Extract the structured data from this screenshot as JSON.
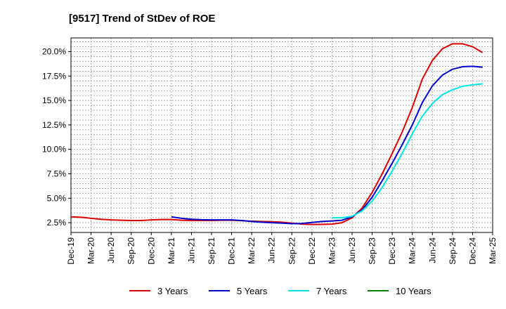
{
  "chart_data": {
    "type": "line",
    "title": "[9517]  Trend of StDev of ROE",
    "xlabel": "",
    "ylabel": "",
    "x_tick_labels": [
      "Dec-19",
      "Mar-20",
      "Jun-20",
      "Sep-20",
      "Dec-20",
      "Mar-21",
      "Jun-21",
      "Sep-21",
      "Dec-21",
      "Mar-22",
      "Jun-22",
      "Sep-22",
      "Dec-22",
      "Mar-23",
      "Jun-23",
      "Sep-23",
      "Dec-23",
      "Mar-24",
      "Jun-24",
      "Sep-24",
      "Dec-24",
      "Mar-25"
    ],
    "y_tick_labels": [
      "2.5%",
      "5.0%",
      "7.5%",
      "10.0%",
      "12.5%",
      "15.0%",
      "17.5%",
      "20.0%"
    ],
    "y_ticks": [
      2.5,
      5.0,
      7.5,
      10.0,
      12.5,
      15.0,
      17.5,
      20.0
    ],
    "ylim": [
      1.5,
      21.4
    ],
    "xlim": [
      0,
      21
    ],
    "grid": true,
    "legend_position": "bottom",
    "series": [
      {
        "name": "3 Years",
        "color": "#dd0000",
        "points": [
          [
            0,
            3.1
          ],
          [
            0.5,
            3.05
          ],
          [
            1,
            2.95
          ],
          [
            1.5,
            2.85
          ],
          [
            2,
            2.78
          ],
          [
            2.5,
            2.75
          ],
          [
            3,
            2.72
          ],
          [
            3.5,
            2.72
          ],
          [
            4,
            2.78
          ],
          [
            4.5,
            2.82
          ],
          [
            5,
            2.82
          ],
          [
            5.5,
            2.75
          ],
          [
            6,
            2.72
          ],
          [
            6.5,
            2.72
          ],
          [
            7,
            2.72
          ],
          [
            7.5,
            2.75
          ],
          [
            8,
            2.75
          ],
          [
            8.5,
            2.7
          ],
          [
            9,
            2.65
          ],
          [
            9.5,
            2.62
          ],
          [
            10,
            2.6
          ],
          [
            10.5,
            2.55
          ],
          [
            11,
            2.45
          ],
          [
            11.5,
            2.35
          ],
          [
            12,
            2.32
          ],
          [
            12.5,
            2.33
          ],
          [
            13,
            2.35
          ],
          [
            13.5,
            2.5
          ],
          [
            14,
            3.0
          ],
          [
            14.5,
            4.0
          ],
          [
            15,
            5.6
          ],
          [
            15.5,
            7.5
          ],
          [
            16,
            9.6
          ],
          [
            16.5,
            11.8
          ],
          [
            17,
            14.3
          ],
          [
            17.5,
            17.2
          ],
          [
            18,
            19.1
          ],
          [
            18.5,
            20.3
          ],
          [
            19,
            20.8
          ],
          [
            19.5,
            20.8
          ],
          [
            20,
            20.5
          ],
          [
            20.5,
            19.9
          ]
        ]
      },
      {
        "name": "5 Years",
        "color": "#0000cc",
        "points": [
          [
            5,
            3.1
          ],
          [
            5.5,
            2.95
          ],
          [
            6,
            2.85
          ],
          [
            6.5,
            2.8
          ],
          [
            7,
            2.78
          ],
          [
            7.5,
            2.78
          ],
          [
            8,
            2.78
          ],
          [
            8.5,
            2.72
          ],
          [
            9,
            2.62
          ],
          [
            9.5,
            2.55
          ],
          [
            10,
            2.5
          ],
          [
            10.5,
            2.45
          ],
          [
            11,
            2.4
          ],
          [
            11.5,
            2.42
          ],
          [
            12,
            2.52
          ],
          [
            12.5,
            2.62
          ],
          [
            13,
            2.68
          ],
          [
            13.5,
            2.75
          ],
          [
            14,
            3.1
          ],
          [
            14.5,
            3.8
          ],
          [
            15,
            5.1
          ],
          [
            15.5,
            6.8
          ],
          [
            16,
            8.6
          ],
          [
            16.5,
            10.5
          ],
          [
            17,
            12.5
          ],
          [
            17.5,
            14.8
          ],
          [
            18,
            16.5
          ],
          [
            18.5,
            17.6
          ],
          [
            19,
            18.2
          ],
          [
            19.5,
            18.45
          ],
          [
            20,
            18.5
          ],
          [
            20.5,
            18.4
          ]
        ]
      },
      {
        "name": "7 Years",
        "color": "#00e5e5",
        "points": [
          [
            13,
            3.0
          ],
          [
            13.5,
            3.0
          ],
          [
            14,
            3.15
          ],
          [
            14.5,
            3.7
          ],
          [
            15,
            4.7
          ],
          [
            15.5,
            6.1
          ],
          [
            16,
            7.8
          ],
          [
            16.5,
            9.6
          ],
          [
            17,
            11.6
          ],
          [
            17.5,
            13.4
          ],
          [
            18,
            14.7
          ],
          [
            18.5,
            15.6
          ],
          [
            19,
            16.1
          ],
          [
            19.5,
            16.45
          ],
          [
            20,
            16.6
          ],
          [
            20.5,
            16.7
          ]
        ]
      },
      {
        "name": "10 Years",
        "color": "#008000",
        "points": []
      }
    ]
  }
}
